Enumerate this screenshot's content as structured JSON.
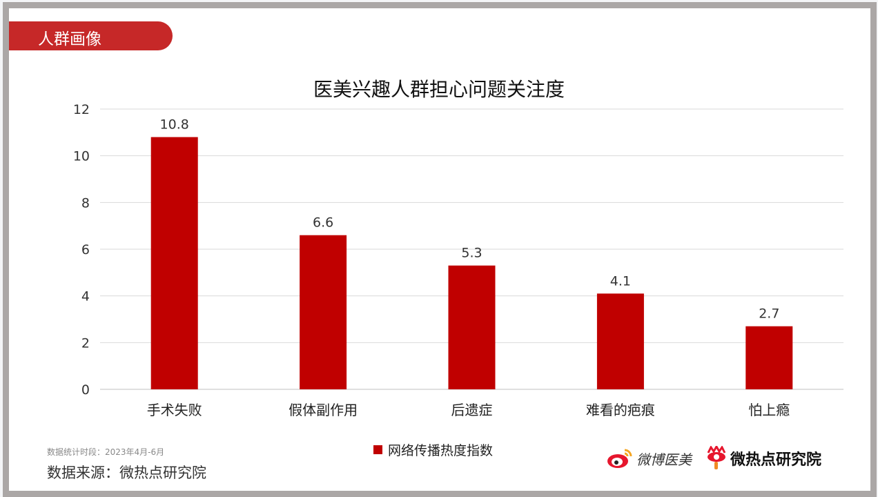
{
  "header": {
    "tag": "人群画像"
  },
  "footer": {
    "period": "数据统计时段：2023年4月-6月",
    "source": "数据来源：微热点研究院",
    "logos": [
      "微博医美",
      "微热点研究院"
    ]
  },
  "colors": {
    "accent": "#c62828",
    "bar": "#c00000",
    "frame": "#aba7a6"
  },
  "chart_data": {
    "type": "bar",
    "title": "医美兴趣人群担心问题关注度",
    "categories": [
      "手术失败",
      "假体副作用",
      "后遗症",
      "难看的疤痕",
      "怕上瘾"
    ],
    "series": [
      {
        "name": "网络传播热度指数",
        "values": [
          10.8,
          6.6,
          5.3,
          4.1,
          2.7
        ]
      }
    ],
    "data_labels": [
      "10.8",
      "6.6",
      "5.3",
      "4.1",
      "2.7"
    ],
    "yticks": [
      0,
      2,
      4,
      6,
      8,
      10,
      12
    ],
    "ylim": [
      0,
      12
    ],
    "grid": true,
    "legend": "bottom"
  }
}
